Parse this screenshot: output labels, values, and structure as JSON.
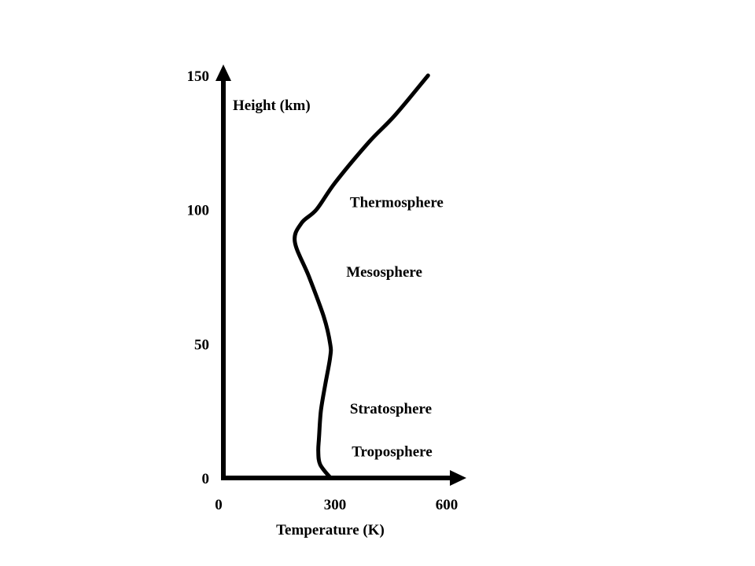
{
  "chart_data": {
    "type": "line",
    "title": "",
    "xlabel": "Temperature (K)",
    "ylabel": "Height (km)",
    "xlim": [
      0,
      600
    ],
    "ylim": [
      0,
      150
    ],
    "x_ticks": [
      {
        "value": 0,
        "label": "0"
      },
      {
        "value": 300,
        "label": "300"
      },
      {
        "value": 600,
        "label": "600"
      }
    ],
    "y_ticks": [
      {
        "value": 0,
        "label": "0"
      },
      {
        "value": 50,
        "label": "50"
      },
      {
        "value": 100,
        "label": "100"
      },
      {
        "value": 150,
        "label": "150"
      }
    ],
    "grid": false,
    "series": [
      {
        "color": "#000000",
        "points": [
          {
            "x": 288,
            "y": 0
          },
          {
            "x": 260,
            "y": 5
          },
          {
            "x": 255,
            "y": 10
          },
          {
            "x": 257,
            "y": 15
          },
          {
            "x": 262,
            "y": 25
          },
          {
            "x": 274,
            "y": 35
          },
          {
            "x": 287,
            "y": 45
          },
          {
            "x": 287,
            "y": 50
          },
          {
            "x": 270,
            "y": 60
          },
          {
            "x": 230,
            "y": 75
          },
          {
            "x": 192,
            "y": 88
          },
          {
            "x": 210,
            "y": 95
          },
          {
            "x": 250,
            "y": 100
          },
          {
            "x": 300,
            "y": 110
          },
          {
            "x": 390,
            "y": 125
          },
          {
            "x": 460,
            "y": 135
          },
          {
            "x": 550,
            "y": 150
          }
        ]
      }
    ],
    "annotations": [
      {
        "text": "Thermosphere",
        "x": 340,
        "y": 101
      },
      {
        "text": "Mesosphere",
        "x": 330,
        "y": 75
      },
      {
        "text": "Stratosphere",
        "x": 340,
        "y": 24
      },
      {
        "text": "Troposphere",
        "x": 345,
        "y": 8
      }
    ]
  }
}
